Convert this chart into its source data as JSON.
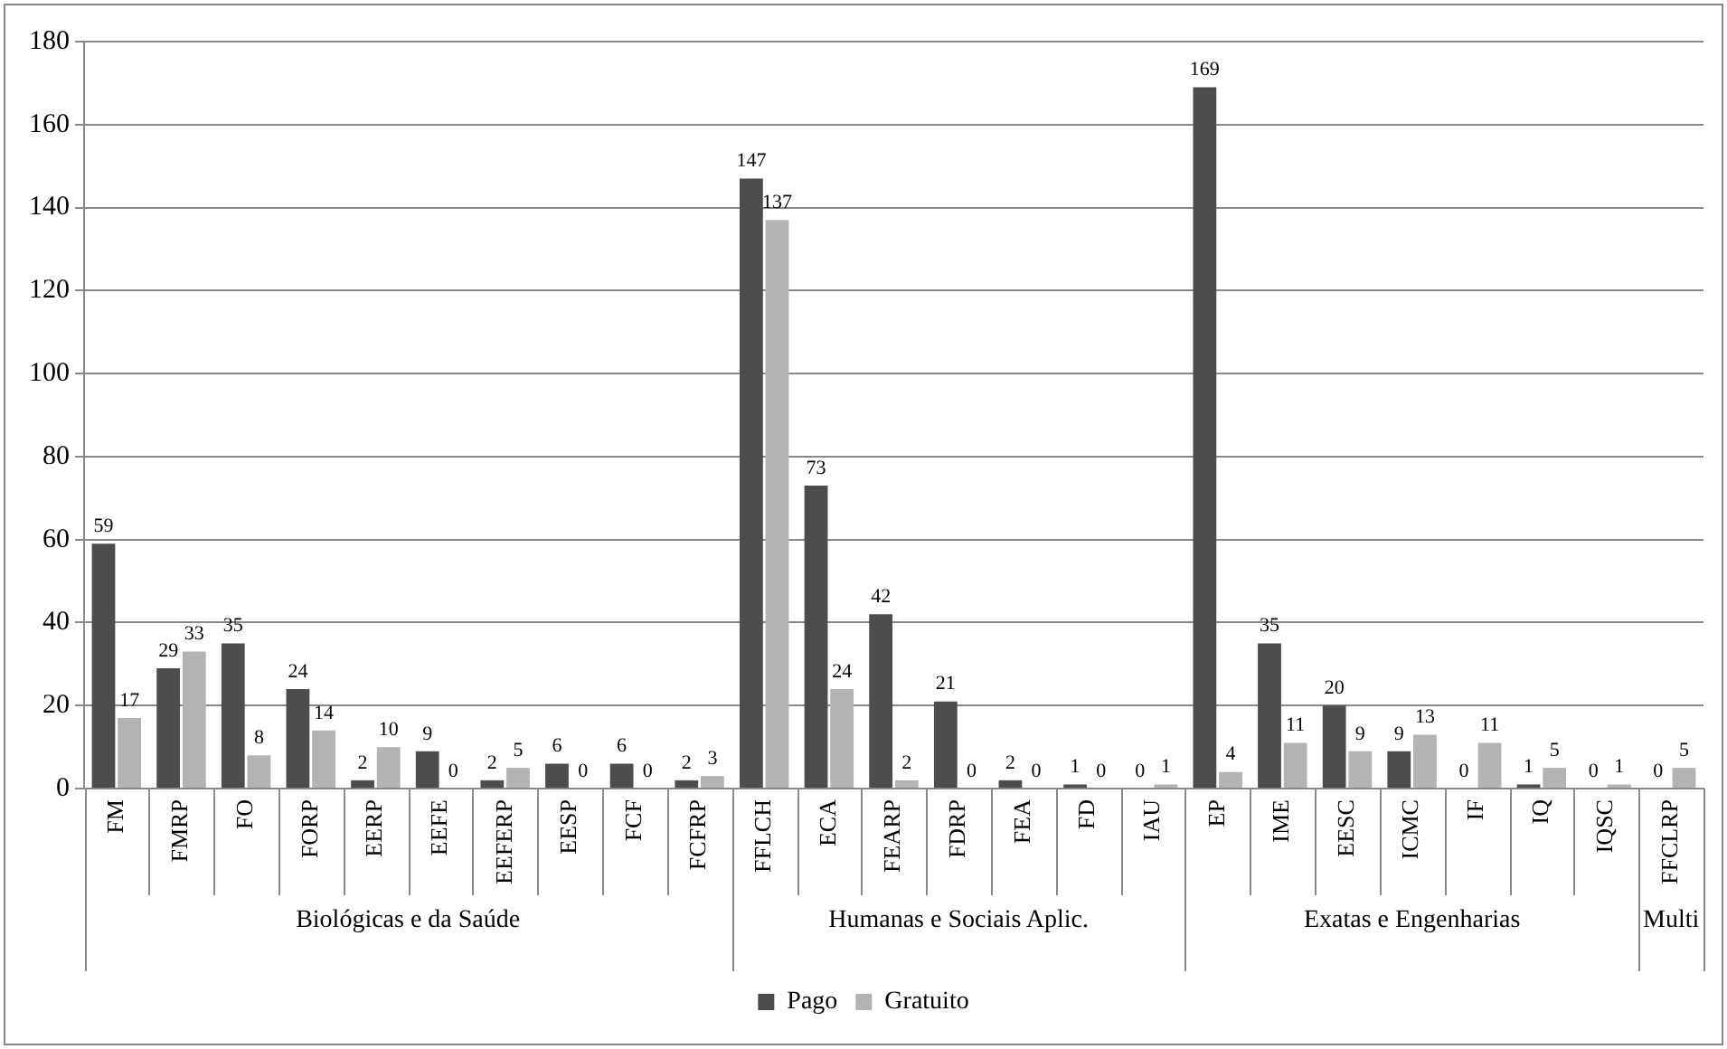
{
  "chart_data": {
    "type": "bar",
    "categories": [
      "FM",
      "FMRP",
      "FO",
      "FORP",
      "EERP",
      "EEFE",
      "EEFERP",
      "EESP",
      "FCF",
      "FCFRP",
      "FFLCH",
      "ECA",
      "FEARP",
      "FDRP",
      "FEA",
      "FD",
      "IAU",
      "EP",
      "IME",
      "EESC",
      "ICMC",
      "IF",
      "IQ",
      "IQSC",
      "FFCLRP"
    ],
    "series": [
      {
        "name": "Pago",
        "color": "#4d4d4d",
        "values": [
          59,
          29,
          35,
          24,
          2,
          9,
          2,
          6,
          6,
          2,
          147,
          73,
          42,
          21,
          2,
          1,
          0,
          169,
          35,
          20,
          9,
          0,
          1,
          0,
          0
        ]
      },
      {
        "name": "Gratuito",
        "color": "#b3b3b3",
        "values": [
          17,
          33,
          8,
          14,
          10,
          0,
          5,
          0,
          0,
          3,
          137,
          24,
          2,
          0,
          0,
          0,
          1,
          4,
          11,
          9,
          13,
          11,
          5,
          1,
          5
        ]
      }
    ],
    "annotations": [
      "Biológicas e da Saúde",
      "Humanas e Sociais Aplic.",
      "Exatas e Engenharias",
      "Multi"
    ],
    "ylim": [
      0,
      180
    ],
    "yticks": [
      0,
      20,
      40,
      60,
      80,
      100,
      120,
      140,
      160,
      180
    ],
    "grid": "y",
    "legend": "bottom",
    "data_labels": true
  }
}
